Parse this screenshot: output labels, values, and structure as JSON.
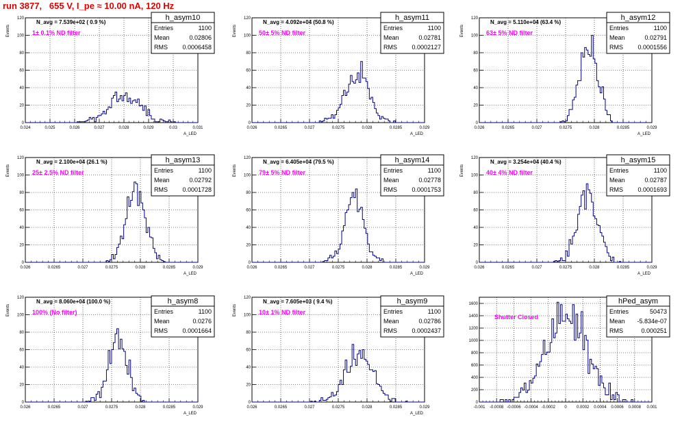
{
  "title": "run 3877,   655 V, I_pe ≈ 10.00 nA, 120 Hz",
  "chart_data": [
    {
      "type": "histogram",
      "name": "h_asym10",
      "navg": "N_avg = 7.539e+02 ( 0.9 %)",
      "filter": "1± 0.1% ND filter",
      "stats": {
        "entries": "1100",
        "mean": "0.02806",
        "rms": "0.0006458"
      },
      "xlim": [
        0.024,
        0.031
      ],
      "xticks": [
        0.024,
        0.025,
        0.026,
        0.027,
        0.028,
        0.029,
        0.03,
        0.031
      ],
      "xtick_labels": [
        "0.024",
        "0.025",
        "0.026",
        "0.027",
        "0.028",
        "0.029",
        "0.03",
        "0.031"
      ],
      "ylim": [
        0,
        120
      ],
      "yticks": [
        0,
        20,
        40,
        60,
        80,
        100,
        120
      ],
      "ylabel": "Events",
      "xlabel": "A_LED",
      "mean_val": 0.02806,
      "rms_val": 0.0006458,
      "peak": 35,
      "seed": 11
    },
    {
      "type": "histogram",
      "name": "h_asym11",
      "navg": "N_avg = 4.092e+04 (50.8 %)",
      "filter": "50± 5% ND filter",
      "stats": {
        "entries": "1100",
        "mean": "0.02781",
        "rms": "0.0002127"
      },
      "xlim": [
        0.026,
        0.029
      ],
      "xticks": [
        0.026,
        0.0265,
        0.027,
        0.0275,
        0.028,
        0.0285,
        0.029
      ],
      "xtick_labels": [
        "0.026",
        "0.0265",
        "0.027",
        "0.0275",
        "0.028",
        "0.0285",
        "0.029"
      ],
      "ylim": [
        0,
        120
      ],
      "yticks": [
        0,
        20,
        40,
        60,
        80,
        100,
        120
      ],
      "ylabel": "Events",
      "xlabel": "A_LED",
      "mean_val": 0.02781,
      "rms_val": 0.0002127,
      "peak": 70,
      "seed": 23
    },
    {
      "type": "histogram",
      "name": "h_asym12",
      "navg": "N_avg = 5.110e+04 (63.4 %)",
      "filter": "63± 5% ND filter",
      "stats": {
        "entries": "1100",
        "mean": "0.02791",
        "rms": "0.0001556"
      },
      "xlim": [
        0.026,
        0.029
      ],
      "xticks": [
        0.026,
        0.0265,
        0.027,
        0.0275,
        0.028,
        0.0285,
        0.029
      ],
      "xtick_labels": [
        "0.026",
        "0.0265",
        "0.027",
        "0.0275",
        "0.028",
        "0.0285",
        "0.029"
      ],
      "ylim": [
        0,
        120
      ],
      "yticks": [
        0,
        20,
        40,
        60,
        80,
        100,
        120
      ],
      "ylabel": "Events",
      "xlabel": "A_LED",
      "mean_val": 0.02791,
      "rms_val": 0.0001556,
      "peak": 100,
      "seed": 37
    },
    {
      "type": "histogram",
      "name": "h_asym13",
      "navg": "N_avg = 2.100e+04 (26.1 %)",
      "filter": "25± 2.5% ND filter",
      "stats": {
        "entries": "1100",
        "mean": "0.02792",
        "rms": "0.0001728"
      },
      "xlim": [
        0.026,
        0.029
      ],
      "xticks": [
        0.026,
        0.0265,
        0.027,
        0.0275,
        0.028,
        0.0285,
        0.029
      ],
      "xtick_labels": [
        "0.026",
        "0.0265",
        "0.027",
        "0.0275",
        "0.028",
        "0.0285",
        "0.029"
      ],
      "ylim": [
        0,
        120
      ],
      "yticks": [
        0,
        20,
        40,
        60,
        80,
        100,
        120
      ],
      "ylabel": "Events",
      "xlabel": "A_LED",
      "mean_val": 0.02792,
      "rms_val": 0.0001728,
      "peak": 92,
      "seed": 41
    },
    {
      "type": "histogram",
      "name": "h_asym14",
      "navg": "N_avg = 6.405e+04 (79.5 %)",
      "filter": "79± 5% ND filter",
      "stats": {
        "entries": "1100",
        "mean": "0.02778",
        "rms": "0.0001753"
      },
      "xlim": [
        0.026,
        0.029
      ],
      "xticks": [
        0.026,
        0.0265,
        0.027,
        0.0275,
        0.028,
        0.0285,
        0.029
      ],
      "xtick_labels": [
        "0.026",
        "0.0265",
        "0.027",
        "0.0275",
        "0.028",
        "0.0285",
        "0.029"
      ],
      "ylim": [
        0,
        120
      ],
      "yticks": [
        0,
        20,
        40,
        60,
        80,
        100,
        120
      ],
      "ylabel": "Events",
      "xlabel": "A_LED",
      "mean_val": 0.02778,
      "rms_val": 0.0001753,
      "peak": 84,
      "seed": 53
    },
    {
      "type": "histogram",
      "name": "h_asym15",
      "navg": "N_avg = 3.254e+04 (40.4 %)",
      "filter": "40± 4% ND filter",
      "stats": {
        "entries": "1100",
        "mean": "0.02787",
        "rms": "0.0001693"
      },
      "xlim": [
        0.026,
        0.029
      ],
      "xticks": [
        0.026,
        0.0265,
        0.027,
        0.0275,
        0.028,
        0.0285,
        0.029
      ],
      "xtick_labels": [
        "0.026",
        "0.0265",
        "0.027",
        "0.0275",
        "0.028",
        "0.0285",
        "0.029"
      ],
      "ylim": [
        0,
        120
      ],
      "yticks": [
        0,
        20,
        40,
        60,
        80,
        100,
        120
      ],
      "ylabel": "Events",
      "xlabel": "A_LED",
      "mean_val": 0.02787,
      "rms_val": 0.0001693,
      "peak": 90,
      "seed": 67
    },
    {
      "type": "histogram",
      "name": "h_asym8",
      "navg": "N_avg = 8.060e+04 (100.0 %)",
      "filter": "100% (No filter)",
      "stats": {
        "entries": "1100",
        "mean": "0.0276",
        "rms": "0.0001664"
      },
      "xlim": [
        0.026,
        0.029
      ],
      "xticks": [
        0.026,
        0.0265,
        0.027,
        0.0275,
        0.028,
        0.0285,
        0.029
      ],
      "xtick_labels": [
        "0.026",
        "0.0265",
        "0.027",
        "0.0275",
        "0.028",
        "0.0285",
        "0.029"
      ],
      "ylim": [
        0,
        120
      ],
      "yticks": [
        0,
        20,
        40,
        60,
        80,
        100,
        120
      ],
      "ylabel": "Events",
      "xlabel": "A_LED",
      "mean_val": 0.0276,
      "rms_val": 0.0001664,
      "peak": 84,
      "seed": 71
    },
    {
      "type": "histogram",
      "name": "h_asym9",
      "navg": "N_avg = 7.605e+03 ( 9.4 %)",
      "filter": "10± 1% ND filter",
      "stats": {
        "entries": "1100",
        "mean": "0.02786",
        "rms": "0.0002437"
      },
      "xlim": [
        0.026,
        0.029
      ],
      "xticks": [
        0.026,
        0.0265,
        0.027,
        0.0275,
        0.028,
        0.0285,
        0.029
      ],
      "xtick_labels": [
        "0.026",
        "0.0265",
        "0.027",
        "0.0275",
        "0.028",
        "0.0285",
        "0.029"
      ],
      "ylim": [
        0,
        120
      ],
      "yticks": [
        0,
        20,
        40,
        60,
        80,
        100,
        120
      ],
      "ylabel": "Events",
      "xlabel": "A_LED",
      "mean_val": 0.02786,
      "rms_val": 0.0002437,
      "peak": 66,
      "seed": 83
    },
    {
      "type": "histogram",
      "name": "hPed_asym",
      "navg": "",
      "filter": "Shutter Closed",
      "stats": {
        "entries": "50473",
        "mean": "-5.834e-07",
        "rms": "0.000251"
      },
      "xlim": [
        -0.001,
        0.001
      ],
      "xticks": [
        -0.001,
        -0.0008,
        -0.0006,
        -0.0004,
        -0.0002,
        0,
        0.0002,
        0.0004,
        0.0006,
        0.0008,
        0.001
      ],
      "xtick_labels": [
        "-0.001",
        "-0.0008",
        "-0.0006",
        "-0.0004",
        "-0.0002",
        "0",
        "0.0002",
        "0.0004",
        "0.0006",
        "0.0008",
        "0.001"
      ],
      "ylim": [
        0,
        1700
      ],
      "yticks": [
        0,
        200,
        400,
        600,
        800,
        1000,
        1200,
        1400,
        1600
      ],
      "ylabel": "",
      "xlabel": "",
      "mean_val": 0,
      "rms_val": 0.000251,
      "peak": 1620,
      "seed": 97
    }
  ],
  "labels": {
    "entries": "Entries",
    "mean": "Mean",
    "rms": "RMS"
  },
  "colors": {
    "hist": "#000080",
    "title": "#e00000",
    "filter": "#ff00ff",
    "grid": "#000000"
  }
}
